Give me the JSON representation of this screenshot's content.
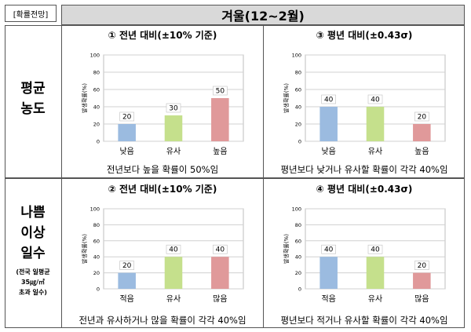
{
  "tag": "[확률전망]",
  "season": "겨울(12~2월)",
  "rows": [
    {
      "label_lines": [
        "평균",
        "농도"
      ],
      "note_lines": []
    },
    {
      "label_lines": [
        "나쁨",
        "이상",
        "일수"
      ],
      "note_lines": [
        "(전국 일평균",
        "35㎍/㎥",
        "초과 일수)"
      ]
    }
  ],
  "colors": {
    "low": "#9bbbe0",
    "similar": "#c5e08c",
    "high": "#e0999a"
  },
  "chart_data": [
    {
      "type": "bar",
      "title": "① 전년 대비(±10% 기준)",
      "ylabel": "발생확률(%)",
      "ylim": [
        0,
        100
      ],
      "yticks": [
        0,
        20,
        40,
        60,
        80,
        100
      ],
      "categories": [
        "낮음",
        "유사",
        "높음"
      ],
      "values": [
        20,
        30,
        50
      ],
      "caption": "전년보다 높을 확률이 50%임"
    },
    {
      "type": "bar",
      "title": "③ 평년 대비(±0.43σ)",
      "ylabel": "발생확률(%)",
      "ylim": [
        0,
        100
      ],
      "yticks": [
        0,
        20,
        40,
        60,
        80,
        100
      ],
      "categories": [
        "낮음",
        "유사",
        "높음"
      ],
      "values": [
        40,
        40,
        20
      ],
      "caption": "평년보다 낮거나 유사할 확률이 각각 40%임"
    },
    {
      "type": "bar",
      "title": "② 전년 대비(±10% 기준)",
      "ylabel": "발생확률(%)",
      "ylim": [
        0,
        100
      ],
      "yticks": [
        0,
        20,
        40,
        60,
        80,
        100
      ],
      "categories": [
        "적음",
        "유사",
        "많음"
      ],
      "values": [
        20,
        40,
        40
      ],
      "caption": "전년과 유사하거나 많을 확률이 각각 40%임"
    },
    {
      "type": "bar",
      "title": "④ 평년 대비(±0.43σ)",
      "ylabel": "발생확률(%)",
      "ylim": [
        0,
        100
      ],
      "yticks": [
        0,
        20,
        40,
        60,
        80,
        100
      ],
      "categories": [
        "적음",
        "유사",
        "많음"
      ],
      "values": [
        40,
        40,
        20
      ],
      "caption": "평년보다 적거나 유사할 확률이 각각 40%임"
    }
  ]
}
